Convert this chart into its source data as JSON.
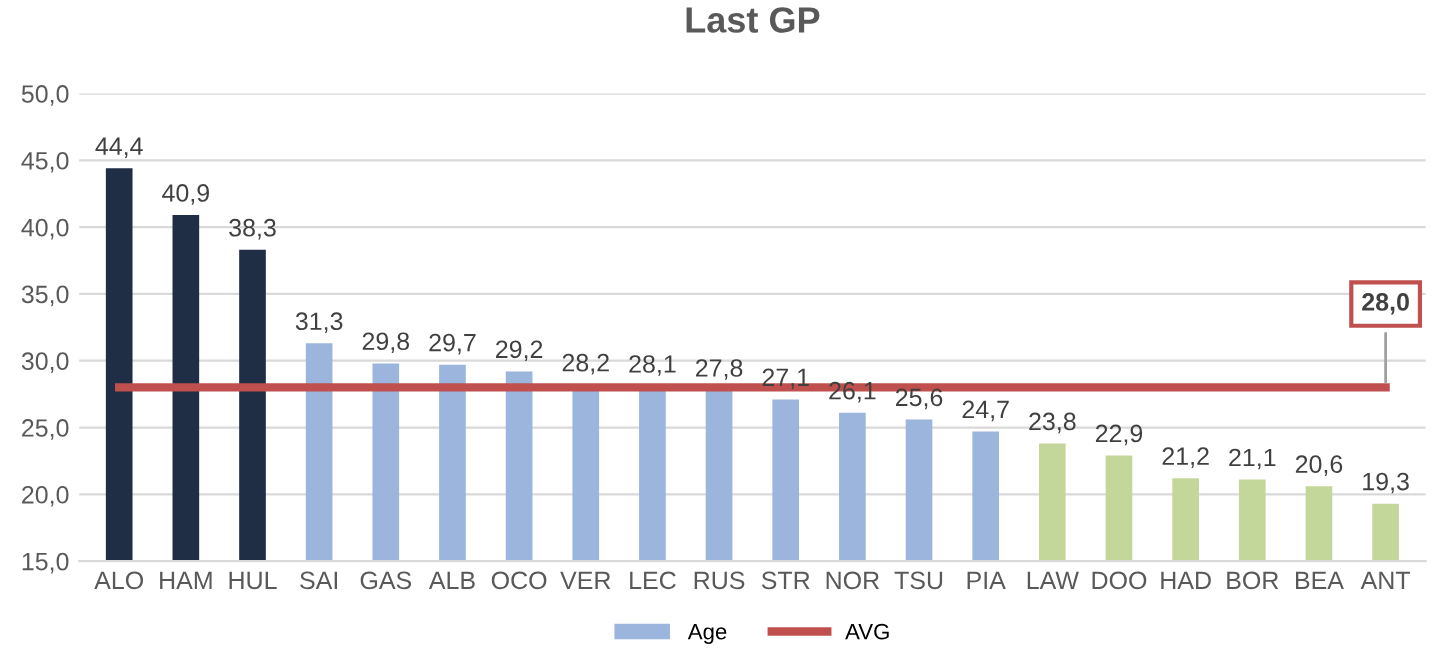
{
  "chart_data": {
    "type": "bar",
    "title": "Last GP",
    "categories": [
      "ALO",
      "HAM",
      "HUL",
      "SAI",
      "GAS",
      "ALB",
      "OCO",
      "VER",
      "LEC",
      "RUS",
      "STR",
      "NOR",
      "TSU",
      "PIA",
      "LAW",
      "DOO",
      "HAD",
      "BOR",
      "BEA",
      "ANT"
    ],
    "series": [
      {
        "name": "Age",
        "color": "#9bb5dc",
        "values": [
          44.4,
          40.9,
          38.3,
          31.3,
          29.8,
          29.7,
          29.2,
          28.2,
          28.1,
          27.8,
          27.1,
          26.1,
          25.6,
          24.7,
          23.8,
          22.9,
          21.2,
          21.1,
          20.6,
          19.3
        ],
        "colors": [
          "#1f2d45",
          "#1f2d45",
          "#1f2d45",
          "#9bb5dc",
          "#9bb5dc",
          "#9bb5dc",
          "#9bb5dc",
          "#9bb5dc",
          "#9bb5dc",
          "#9bb5dc",
          "#9bb5dc",
          "#9bb5dc",
          "#9bb5dc",
          "#9bb5dc",
          "#c4d79b",
          "#c4d79b",
          "#c4d79b",
          "#c4d79b",
          "#c4d79b",
          "#c4d79b"
        ],
        "value_labels": [
          "44,4",
          "40,9",
          "38,3",
          "31,3",
          "29,8",
          "29,7",
          "29,2",
          "28,2",
          "28,1",
          "27,8",
          "27,1",
          "26,1",
          "25,6",
          "24,7",
          "23,8",
          "22,9",
          "21,2",
          "21,1",
          "20,6",
          "19,3"
        ]
      },
      {
        "name": "AVG",
        "type": "line",
        "color": "#c0504d",
        "values": [
          28.0,
          28.0,
          28.0,
          28.0,
          28.0,
          28.0,
          28.0,
          28.0,
          28.0,
          28.0,
          28.0,
          28.0,
          28.0,
          28.0,
          28.0,
          28.0,
          28.0,
          28.0,
          28.0,
          28.0
        ],
        "value_labels": [
          null,
          null,
          null,
          null,
          null,
          null,
          null,
          null,
          null,
          null,
          null,
          null,
          null,
          null,
          null,
          null,
          null,
          null,
          null,
          "28,0"
        ]
      }
    ],
    "ylim": [
      15,
      50
    ],
    "yticks": [
      {
        "value": 15,
        "label": "15,0"
      },
      {
        "value": 20,
        "label": "20,0"
      },
      {
        "value": 25,
        "label": "25,0"
      },
      {
        "value": 30,
        "label": "30,0"
      },
      {
        "value": 35,
        "label": "35,0"
      },
      {
        "value": 40,
        "label": "40,0"
      },
      {
        "value": 45,
        "label": "45,0"
      },
      {
        "value": 50,
        "label": "50,0"
      }
    ],
    "grid": "y",
    "legend": "bottom"
  }
}
